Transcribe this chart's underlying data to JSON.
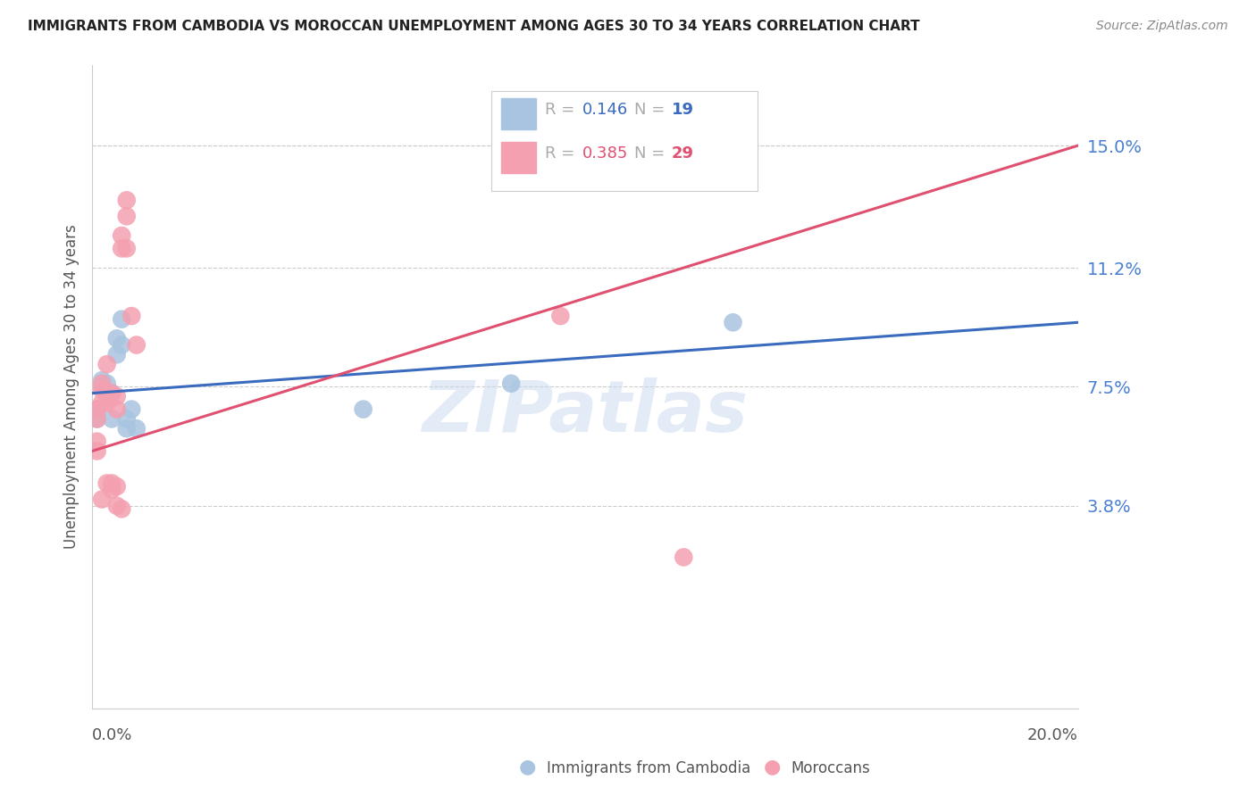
{
  "title": "IMMIGRANTS FROM CAMBODIA VS MOROCCAN UNEMPLOYMENT AMONG AGES 30 TO 34 YEARS CORRELATION CHART",
  "source": "Source: ZipAtlas.com",
  "ylabel": "Unemployment Among Ages 30 to 34 years",
  "ytick_labels": [
    "15.0%",
    "11.2%",
    "7.5%",
    "3.8%"
  ],
  "ytick_values": [
    0.15,
    0.112,
    0.075,
    0.038
  ],
  "xlim": [
    0.0,
    0.2
  ],
  "ylim": [
    -0.025,
    0.175
  ],
  "cambodia_x": [
    0.001,
    0.001,
    0.002,
    0.002,
    0.003,
    0.003,
    0.004,
    0.004,
    0.005,
    0.005,
    0.006,
    0.006,
    0.007,
    0.007,
    0.008,
    0.009,
    0.055,
    0.085,
    0.13
  ],
  "cambodia_y": [
    0.065,
    0.068,
    0.075,
    0.077,
    0.073,
    0.076,
    0.073,
    0.065,
    0.085,
    0.09,
    0.096,
    0.088,
    0.062,
    0.065,
    0.068,
    0.062,
    0.068,
    0.076,
    0.095
  ],
  "moroccan_x": [
    0.001,
    0.001,
    0.001,
    0.001,
    0.002,
    0.002,
    0.002,
    0.002,
    0.003,
    0.003,
    0.003,
    0.003,
    0.004,
    0.004,
    0.004,
    0.005,
    0.005,
    0.005,
    0.005,
    0.006,
    0.006,
    0.006,
    0.007,
    0.007,
    0.007,
    0.008,
    0.009,
    0.095,
    0.12
  ],
  "moroccan_y": [
    0.065,
    0.068,
    0.058,
    0.055,
    0.07,
    0.074,
    0.076,
    0.04,
    0.082,
    0.073,
    0.07,
    0.045,
    0.073,
    0.043,
    0.045,
    0.072,
    0.068,
    0.044,
    0.038,
    0.122,
    0.118,
    0.037,
    0.133,
    0.128,
    0.118,
    0.097,
    0.088,
    0.097,
    0.022
  ],
  "cambodia_R": 0.146,
  "cambodia_N": 19,
  "moroccan_R": 0.385,
  "moroccan_N": 29,
  "cambodia_color": "#a8c4e0",
  "moroccan_color": "#f4a0b0",
  "cambodia_line_color": "#3a6bbf",
  "moroccan_line_color": "#e05070",
  "trend_dashed_color": "#c8b0b8",
  "watermark": "ZIPatlas",
  "background_color": "#ffffff",
  "legend_entries": [
    {
      "label": "Immigrants from Cambodia",
      "color": "#a8c4e0",
      "R": 0.146,
      "N": 19,
      "line_color": "#3a6bbf"
    },
    {
      "label": "Moroccans",
      "color": "#f4a0b0",
      "R": 0.385,
      "N": 29,
      "line_color": "#e05070"
    }
  ]
}
